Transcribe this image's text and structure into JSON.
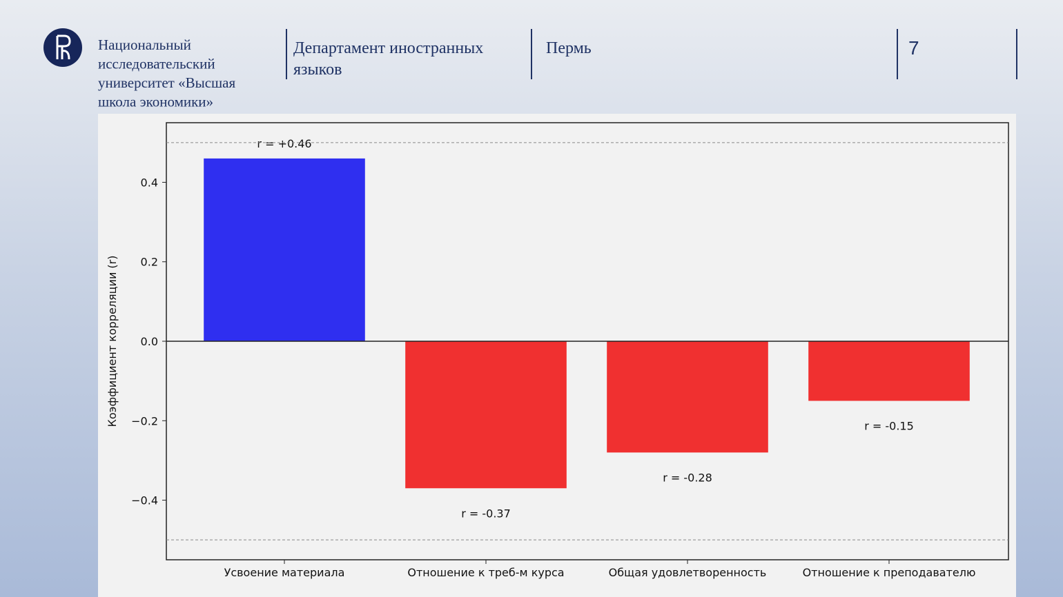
{
  "header": {
    "organization": [
      "Национальный",
      "исследовательский",
      "университет «Высшая",
      "школа экономики»"
    ],
    "department": [
      "Департамент иностранных",
      "языков"
    ],
    "city": "Пермь",
    "page_number": "7"
  },
  "chart_data": {
    "type": "bar",
    "ylabel": "Коэффициент корреляции (r)",
    "categories": [
      "Усвоение материала",
      "Отношение к треб-м курса",
      "Общая удовлетворенность",
      "Отношение к преподавателю"
    ],
    "values": [
      0.46,
      -0.37,
      -0.28,
      -0.15
    ],
    "value_labels": [
      "r = +0.46",
      "r = -0.37",
      "r = -0.28",
      "r = -0.15"
    ],
    "colors": [
      "#2f2ff0",
      "#f03030",
      "#f03030",
      "#f03030"
    ],
    "ylim": [
      -0.55,
      0.55
    ],
    "yticks": [
      {
        "value": -0.4,
        "label": "−0.4"
      },
      {
        "value": -0.2,
        "label": "−0.2"
      },
      {
        "value": 0,
        "label": "0.0"
      },
      0.2,
      0.4
    ],
    "reference_lines": [
      {
        "value": 0.5,
        "style": "dashed"
      },
      {
        "value": -0.5,
        "style": "dashed"
      },
      {
        "value": 0,
        "style": "solid"
      }
    ],
    "grid": false
  }
}
